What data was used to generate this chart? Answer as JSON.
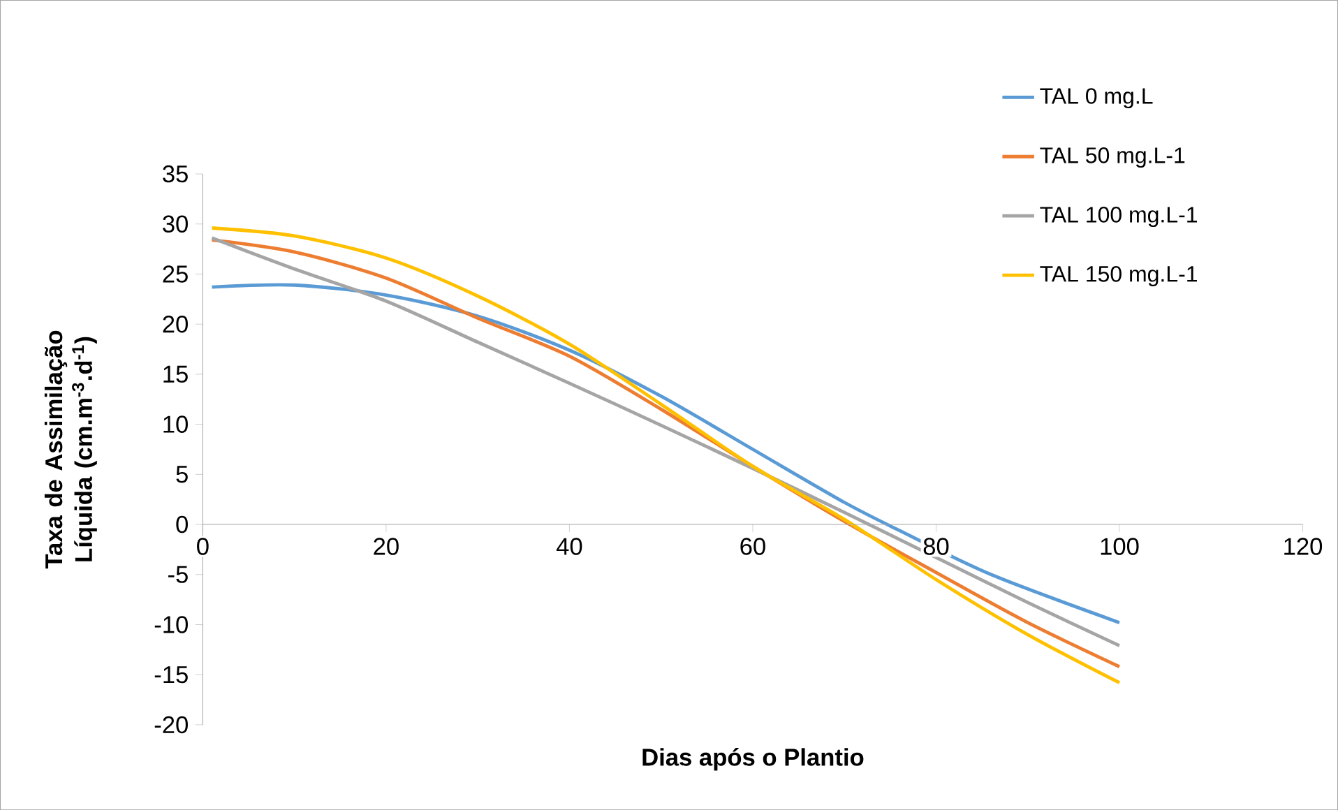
{
  "chart_data": {
    "type": "line",
    "xlabel": "Dias após o Plantio",
    "ylabel": "Taxa de Assimilação Líquida (cm.m$^{-3}$.d$^{-1}$)",
    "x": [
      1,
      10,
      20,
      30,
      40,
      50,
      60,
      70,
      80,
      90,
      100
    ],
    "series": [
      {
        "name": "TAL 0 mg.L",
        "color": "#5b9bd5",
        "x": [
          1,
          10,
          20,
          30,
          40,
          50,
          60,
          70,
          76,
          86,
          100
        ],
        "values": [
          23.7,
          23.9,
          22.9,
          20.8,
          17.4,
          12.8,
          7.5,
          2.2,
          -0.6,
          -5.0,
          -9.8
        ]
      },
      {
        "name": "TAL 50 mg.L-1",
        "color": "#ed7d31",
        "values": [
          28.4,
          27.2,
          24.6,
          20.6,
          16.8,
          11.5,
          5.8,
          0.3,
          -4.8,
          -9.8,
          -14.2
        ]
      },
      {
        "name": "TAL 100 mg.L-1",
        "color": "#a5a5a5",
        "values": [
          28.6,
          25.5,
          22.3,
          18.2,
          14.1,
          9.9,
          5.6,
          1.2,
          -3.3,
          -7.8,
          -12.1
        ]
      },
      {
        "name": "TAL 150 mg.L-1",
        "color": "#ffc000",
        "values": [
          29.6,
          28.8,
          26.6,
          22.8,
          18.0,
          12.0,
          5.8,
          0.5,
          -5.5,
          -11.0,
          -15.8
        ]
      }
    ],
    "xlim": [
      0,
      120
    ],
    "xticks": [
      0,
      20,
      40,
      60,
      80,
      100,
      120
    ],
    "ylim": [
      -20,
      35
    ],
    "yticks": [
      -20,
      -15,
      -10,
      -5,
      0,
      5,
      10,
      15,
      20,
      25,
      30,
      35
    ],
    "grid": false,
    "legend": "right",
    "marker": "none",
    "line_style": "solid"
  }
}
